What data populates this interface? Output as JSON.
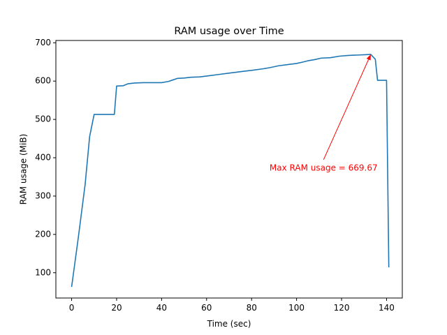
{
  "chart_data": {
    "type": "line",
    "title": "RAM usage over Time",
    "xlabel": "Time (sec)",
    "ylabel": "RAM usage (MiB)",
    "xlim": [
      -7,
      147
    ],
    "ylim": [
      34,
      706
    ],
    "xticks": [
      0,
      20,
      40,
      60,
      80,
      100,
      120,
      140
    ],
    "yticks": [
      100,
      200,
      300,
      400,
      500,
      600,
      700
    ],
    "grid": false,
    "series": [
      {
        "color": "#1f77b4",
        "x": [
          0,
          3,
          6,
          8,
          10,
          15,
          19,
          20,
          23,
          25,
          28,
          32,
          36,
          40,
          43,
          45,
          47,
          50,
          53,
          57,
          61,
          65,
          69,
          73,
          77,
          80,
          85,
          88,
          92,
          96,
          100,
          103,
          105,
          108,
          111,
          115,
          119,
          123,
          127,
          131,
          133,
          135,
          136,
          138,
          140,
          141
        ],
        "y": [
          63,
          193,
          330,
          455,
          513,
          513,
          513,
          587,
          588,
          593,
          595,
          596,
          596,
          596,
          599,
          603,
          607,
          608,
          610,
          611,
          614,
          617,
          620,
          623,
          626,
          628,
          632,
          635,
          640,
          643,
          646,
          650,
          653,
          656,
          660,
          661,
          665,
          667,
          668,
          669,
          669.67,
          657,
          602,
          602,
          602,
          114
        ]
      }
    ],
    "annotation": {
      "text": "Max RAM usage = 669.67",
      "color": "#ff0000",
      "point": [
        133,
        669.67
      ],
      "text_pos": [
        112,
        373
      ]
    }
  }
}
